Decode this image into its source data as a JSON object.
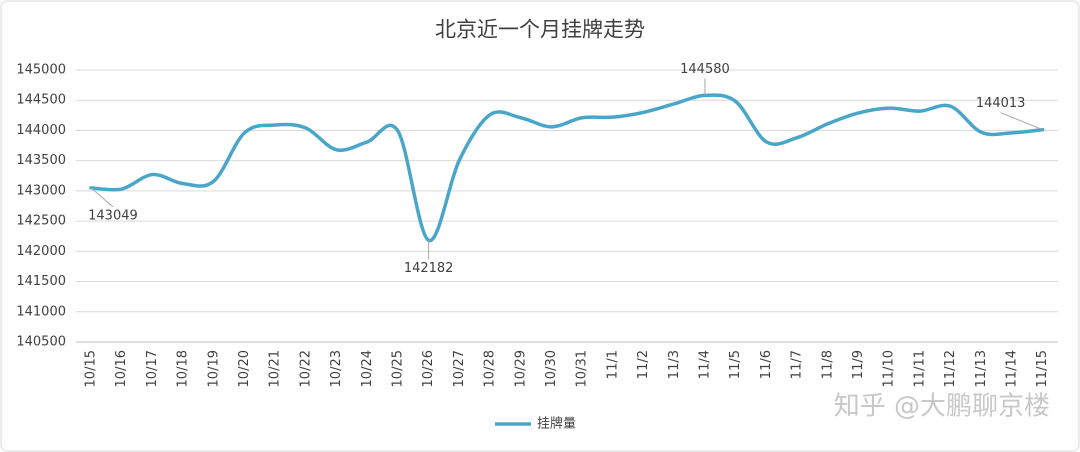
{
  "chart_data": {
    "type": "line",
    "title": "北京近一个月挂牌走势",
    "categories": [
      "10/15",
      "10/16",
      "10/17",
      "10/18",
      "10/19",
      "10/20",
      "10/21",
      "10/22",
      "10/23",
      "10/24",
      "10/25",
      "10/26",
      "10/27",
      "10/28",
      "10/29",
      "10/30",
      "10/31",
      "11/1",
      "11/2",
      "11/3",
      "11/4",
      "11/5",
      "11/6",
      "11/7",
      "11/8",
      "11/9",
      "11/10",
      "11/11",
      "11/12",
      "11/13",
      "11/14",
      "11/15"
    ],
    "series": [
      {
        "name": "挂牌量",
        "color": "#4aa6c9",
        "values": [
          143049,
          143030,
          143270,
          143120,
          143160,
          143960,
          144090,
          144040,
          143680,
          143810,
          143990,
          142182,
          143510,
          144260,
          144210,
          144060,
          144210,
          144220,
          144300,
          144440,
          144580,
          144480,
          143810,
          143880,
          144110,
          144290,
          144370,
          144320,
          144400,
          143970,
          143960,
          144013
        ],
        "value_labels": [
          "143049",
          null,
          null,
          null,
          null,
          null,
          null,
          null,
          null,
          null,
          null,
          "142182",
          null,
          null,
          null,
          null,
          null,
          null,
          null,
          null,
          "144580",
          null,
          null,
          null,
          null,
          null,
          null,
          null,
          null,
          null,
          null,
          "144013"
        ]
      }
    ],
    "ylim": [
      140500,
      145000
    ],
    "yticks": [
      140500,
      141000,
      141500,
      142000,
      142500,
      143000,
      143500,
      144000,
      144500,
      145000
    ],
    "grid": true,
    "legend": "bottom",
    "watermark": "知乎 @大鹏聊京楼"
  }
}
